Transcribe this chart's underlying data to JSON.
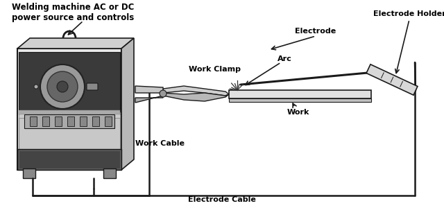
{
  "bg_color": "#ffffff",
  "labels": {
    "welding_machine": "Welding machine AC or DC\npower source and controls",
    "electrode_holder": "Electrode Holder",
    "electrode": "Electrode",
    "arc": "Arc",
    "work": "Work",
    "work_clamp": "Work Clamp",
    "work_cable": "Work Cable",
    "electrode_cable": "Electrode Cable"
  },
  "line_color": "#1a1a1a",
  "text_color": "#000000",
  "figsize": [
    6.4,
    3.0
  ],
  "dpi": 100
}
